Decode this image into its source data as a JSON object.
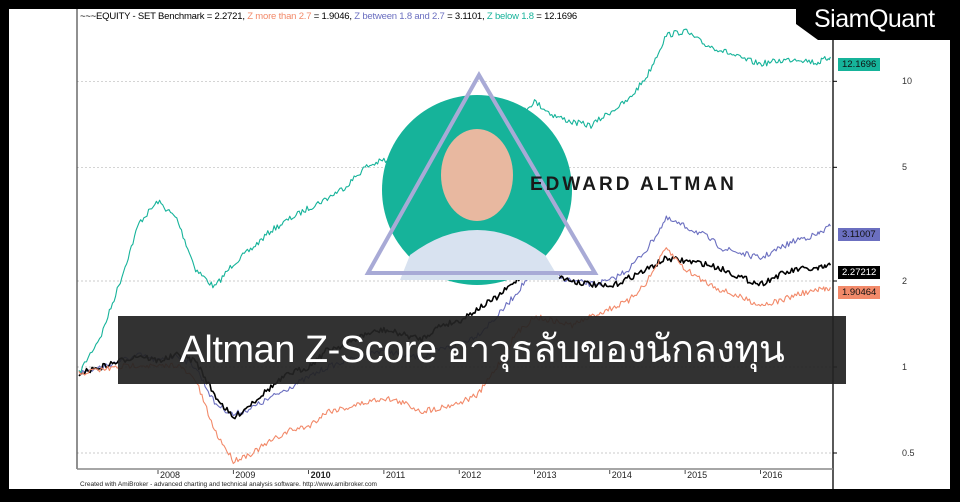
{
  "chart_data": {
    "type": "line",
    "title": "~~~EQUITY - SET Benchmark = 2.2721, Z more than 2.7 = 1.9046, Z between 1.8 and 2.7 = 3.1101, Z below 1.8 = 12.1696",
    "y_scale": "log",
    "ylim": [
      0.45,
      17
    ],
    "xlim": [
      2006.95,
      2016.95
    ],
    "y_ticks": [
      "10",
      "5",
      "2",
      "1",
      "0.5"
    ],
    "y_tick_values": [
      10,
      5,
      2,
      1,
      0.5
    ],
    "x_ticks": [
      "2008",
      "2009",
      "2010",
      "2011",
      "2012",
      "2013",
      "2014",
      "2015",
      "2016"
    ],
    "x_tick_values": [
      2008,
      2009,
      2010,
      2011,
      2012,
      2013,
      2014,
      2015,
      2016
    ],
    "grid": "horizontal dotted",
    "x": [
      2006.95,
      2007.25,
      2007.5,
      2007.75,
      2008.0,
      2008.25,
      2008.5,
      2008.75,
      2009.0,
      2009.25,
      2009.5,
      2009.75,
      2010.0,
      2010.25,
      2010.5,
      2010.75,
      2011.0,
      2011.25,
      2011.5,
      2011.75,
      2012.0,
      2012.25,
      2012.5,
      2012.75,
      2013.0,
      2013.25,
      2013.5,
      2013.75,
      2014.0,
      2014.25,
      2014.5,
      2014.75,
      2015.0,
      2015.25,
      2015.5,
      2015.75,
      2016.0,
      2016.25,
      2016.5,
      2016.75,
      2016.93
    ],
    "series": [
      {
        "name": "Z below 1.8",
        "color": "#16b39a",
        "last_label": "12.1696",
        "values": [
          0.95,
          1.3,
          2.0,
          3.2,
          3.8,
          3.3,
          2.2,
          1.9,
          2.3,
          2.6,
          3.0,
          3.3,
          3.6,
          3.9,
          4.3,
          5.0,
          5.3,
          4.8,
          4.6,
          4.6,
          4.8,
          5.5,
          6.4,
          7.5,
          8.5,
          7.6,
          7.2,
          7.0,
          7.8,
          8.6,
          10.5,
          14.5,
          15.0,
          13.5,
          12.8,
          12.0,
          11.5,
          11.8,
          12.0,
          11.6,
          12.17
        ]
      },
      {
        "name": "Z between 1.8 and 2.7",
        "color": "#6b6fc0",
        "last_label": "3.11007",
        "values": [
          0.95,
          1.0,
          1.05,
          1.1,
          1.05,
          1.1,
          1.0,
          0.75,
          0.68,
          0.72,
          0.78,
          0.85,
          0.92,
          1.0,
          1.05,
          1.1,
          1.15,
          1.1,
          1.08,
          1.15,
          1.2,
          1.3,
          1.5,
          1.8,
          2.2,
          2.1,
          2.0,
          1.95,
          2.0,
          2.2,
          2.6,
          3.3,
          3.1,
          2.9,
          2.6,
          2.5,
          2.4,
          2.6,
          2.8,
          2.9,
          3.11
        ]
      },
      {
        "name": "EQUITY - SET Benchmark",
        "color": "#000000",
        "last_label": "2.27212",
        "values": [
          0.95,
          1.0,
          1.05,
          1.1,
          1.05,
          1.1,
          1.05,
          0.8,
          0.66,
          0.75,
          0.85,
          0.95,
          1.0,
          1.15,
          1.2,
          1.3,
          1.35,
          1.3,
          1.25,
          1.4,
          1.45,
          1.6,
          1.75,
          2.0,
          2.3,
          2.1,
          2.0,
          1.95,
          1.9,
          2.05,
          2.2,
          2.4,
          2.35,
          2.3,
          2.2,
          2.05,
          1.95,
          2.1,
          2.2,
          2.2,
          2.27
        ]
      },
      {
        "name": "Z more than 2.7",
        "color": "#f28a6a",
        "last_label": "1.90464",
        "values": [
          0.95,
          0.98,
          1.0,
          1.02,
          1.0,
          1.02,
          0.9,
          0.6,
          0.47,
          0.5,
          0.55,
          0.6,
          0.62,
          0.7,
          0.72,
          0.75,
          0.78,
          0.75,
          0.7,
          0.72,
          0.75,
          0.8,
          1.0,
          1.3,
          1.5,
          1.45,
          1.4,
          1.5,
          1.6,
          1.7,
          2.0,
          2.6,
          2.2,
          2.0,
          1.85,
          1.75,
          1.65,
          1.7,
          1.8,
          1.85,
          1.9
        ]
      }
    ]
  },
  "legend": {
    "benchmark": "~~~EQUITY - SET Benchmark = 2.2721,",
    "z_more": "Z more than 2.7",
    "z_more_val": " = 1.9046,",
    "z_between": "Z between 1.8 and 2.7",
    "z_between_val": " = 3.1101,",
    "z_below": "Z below 1.8",
    "z_below_val": " = 12.1696"
  },
  "credit": "Created with AmiBroker - advanced charting and technical analysis software. http://www.amibroker.com",
  "banner": "Altman Z-Score อาวุธลับของนักลงทุน",
  "person_name": "EDWARD ALTMAN",
  "logo": "SiamQuant",
  "accent": "#16b39a"
}
